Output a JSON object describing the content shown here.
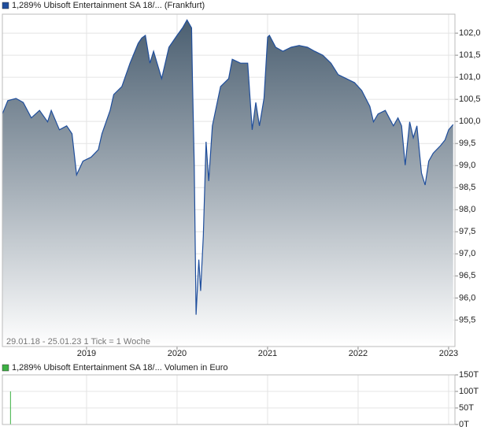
{
  "chart_data": [
    {
      "type": "area",
      "legend": "1,289% Ubisoft Entertainment SA 18/... (Frankfurt)",
      "annotation": "29.01.18 - 25.01.23   1 Tick = 1 Woche",
      "series": [
        {
          "name": "1,289% Ubisoft Entertainment SA 18/... (Frankfurt)",
          "color": "#1f4e9c",
          "x": [
            2018.07,
            2018.13,
            2018.22,
            2018.3,
            2018.39,
            2018.48,
            2018.57,
            2018.61,
            2018.7,
            2018.78,
            2018.84,
            2018.89,
            2018.96,
            2019.05,
            2019.13,
            2019.17,
            2019.26,
            2019.3,
            2019.39,
            2019.48,
            2019.57,
            2019.61,
            2019.65,
            2019.7,
            2019.74,
            2019.83,
            2019.91,
            2020.0,
            2020.06,
            2020.11,
            2020.16,
            2020.17,
            2020.19,
            2020.21,
            2020.24,
            2020.26,
            2020.29,
            2020.32,
            2020.35,
            2020.39,
            2020.48,
            2020.57,
            2020.61,
            2020.7,
            2020.78,
            2020.83,
            2020.87,
            2020.91,
            2020.96,
            2021.0,
            2021.02,
            2021.09,
            2021.17,
            2021.26,
            2021.35,
            2021.44,
            2021.52,
            2021.61,
            2021.7,
            2021.78,
            2021.87,
            2021.96,
            2022.04,
            2022.13,
            2022.17,
            2022.22,
            2022.3,
            2022.39,
            2022.44,
            2022.48,
            2022.52,
            2022.57,
            2022.61,
            2022.65,
            2022.7,
            2022.74,
            2022.78,
            2022.83,
            2022.91,
            2022.96,
            2023.0,
            2023.05
          ],
          "values": [
            100.17,
            100.47,
            100.52,
            100.43,
            100.08,
            100.25,
            99.99,
            100.25,
            99.81,
            99.9,
            99.72,
            98.79,
            99.1,
            99.19,
            99.36,
            99.72,
            100.25,
            100.61,
            100.79,
            101.32,
            101.77,
            101.89,
            101.95,
            101.32,
            101.59,
            100.97,
            101.68,
            101.95,
            102.12,
            102.3,
            102.12,
            100.97,
            99.01,
            95.62,
            96.87,
            96.16,
            97.4,
            99.54,
            98.65,
            99.9,
            100.79,
            100.97,
            101.41,
            101.32,
            101.32,
            99.81,
            100.43,
            99.9,
            100.52,
            101.91,
            101.95,
            101.68,
            101.59,
            101.68,
            101.72,
            101.68,
            101.59,
            101.5,
            101.32,
            101.06,
            100.97,
            100.88,
            100.7,
            100.34,
            99.99,
            100.17,
            100.25,
            99.9,
            100.08,
            99.9,
            99.01,
            99.99,
            99.63,
            99.9,
            98.83,
            98.56,
            99.1,
            99.28,
            99.45,
            99.58,
            99.81,
            99.93
          ]
        }
      ],
      "xlim": [
        2018.07,
        2023.07
      ],
      "xticks": [
        2019,
        2020,
        2021,
        2022,
        2023
      ],
      "ylim": [
        94.9,
        102.43
      ],
      "yticks": [
        {
          "value": 95.5,
          "label": "95,5"
        },
        {
          "value": 96,
          "label": "96,0"
        },
        {
          "value": 96.5,
          "label": "96,5"
        },
        {
          "value": 97,
          "label": "97,0"
        },
        {
          "value": 97.5,
          "label": "97,5"
        },
        {
          "value": 98,
          "label": "98,0"
        },
        {
          "value": 98.5,
          "label": "98,5"
        },
        {
          "value": 99,
          "label": "99,0"
        },
        {
          "value": 99.5,
          "label": "99,5"
        },
        {
          "value": 100,
          "label": "100,0"
        },
        {
          "value": 100.5,
          "label": "100,5"
        },
        {
          "value": 101,
          "label": "101,0"
        },
        {
          "value": 101.5,
          "label": "101,5"
        },
        {
          "value": 102,
          "label": "102,0"
        }
      ],
      "grid": true
    },
    {
      "type": "bar",
      "legend": "1,289% Ubisoft Entertainment SA 18/... Volumen in Euro",
      "series": [
        {
          "name": "1,289% Ubisoft Entertainment SA 18/... Volumen in Euro",
          "color": "#3cb043",
          "x": [
            2018.16
          ],
          "values": [
            100000
          ]
        }
      ],
      "xlim": [
        2018.07,
        2023.07
      ],
      "ylim": [
        0,
        150000
      ],
      "yticks": [
        {
          "value": 0,
          "label": "0T"
        },
        {
          "value": 50000,
          "label": "50T"
        },
        {
          "value": 100000,
          "label": "100T"
        },
        {
          "value": 150000,
          "label": "150T"
        }
      ],
      "grid": true
    }
  ]
}
